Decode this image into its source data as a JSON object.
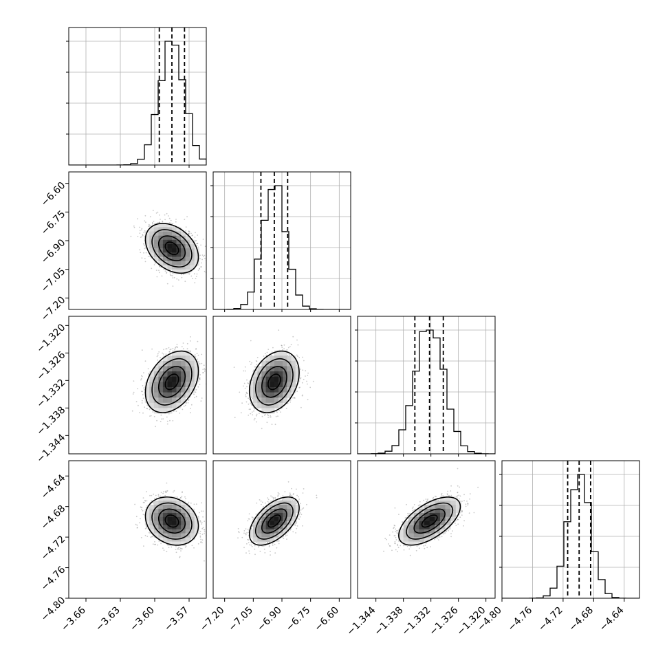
{
  "chart_data": {
    "type": "corner",
    "grid": true,
    "parameters": [
      {
        "index": 0,
        "range": [
          -3.675,
          -3.555
        ],
        "ticks": [
          -3.66,
          -3.63,
          -3.6,
          -3.57
        ],
        "tick_labels": [
          "−3.66",
          "−3.63",
          "−3.60",
          "−3.57"
        ],
        "mean": -3.585,
        "sd": 0.011,
        "quantiles": [
          -3.596,
          -3.585,
          -3.574
        ]
      },
      {
        "index": 1,
        "range": [
          -7.26,
          -6.54
        ],
        "ticks": [
          -7.2,
          -7.05,
          -6.9,
          -6.75,
          -6.6
        ],
        "tick_labels": [
          "−7.20",
          "−7.05",
          "−6.90",
          "−6.75",
          "−6.60"
        ],
        "mean": -6.94,
        "sd": 0.062,
        "quantiles": [
          -7.01,
          -6.94,
          -6.87
        ]
      },
      {
        "index": 2,
        "range": [
          -1.348,
          -1.318
        ],
        "ticks": [
          -1.344,
          -1.338,
          -1.332,
          -1.326,
          -1.32
        ],
        "tick_labels": [
          "−1.344",
          "−1.338",
          "−1.332",
          "−1.326",
          "−1.320"
        ],
        "mean": -1.3323,
        "sd": 0.0032,
        "quantiles": [
          -1.3355,
          -1.3323,
          -1.3293
        ]
      },
      {
        "index": 3,
        "range": [
          -4.8,
          -4.62
        ],
        "ticks": [
          -4.8,
          -4.76,
          -4.72,
          -4.68,
          -4.64
        ],
        "tick_labels": [
          "−4.80",
          "−4.76",
          "−4.72",
          "−4.68",
          "−4.64"
        ],
        "mean": -4.699,
        "sd": 0.015,
        "quantiles": [
          -4.714,
          -4.699,
          -4.684
        ]
      }
    ],
    "correlations": [
      {
        "pair": [
          0,
          1
        ],
        "rho": -0.35
      },
      {
        "pair": [
          0,
          2
        ],
        "rho": 0.35
      },
      {
        "pair": [
          1,
          2
        ],
        "rho": 0.3
      },
      {
        "pair": [
          0,
          3
        ],
        "rho": -0.2
      },
      {
        "pair": [
          1,
          3
        ],
        "rho": 0.55
      },
      {
        "pair": [
          2,
          3
        ],
        "rho": 0.6
      }
    ],
    "histogram_bins": 20,
    "contour_levels_sigma": [
      0.5,
      1.0,
      1.5,
      2.0
    ]
  }
}
